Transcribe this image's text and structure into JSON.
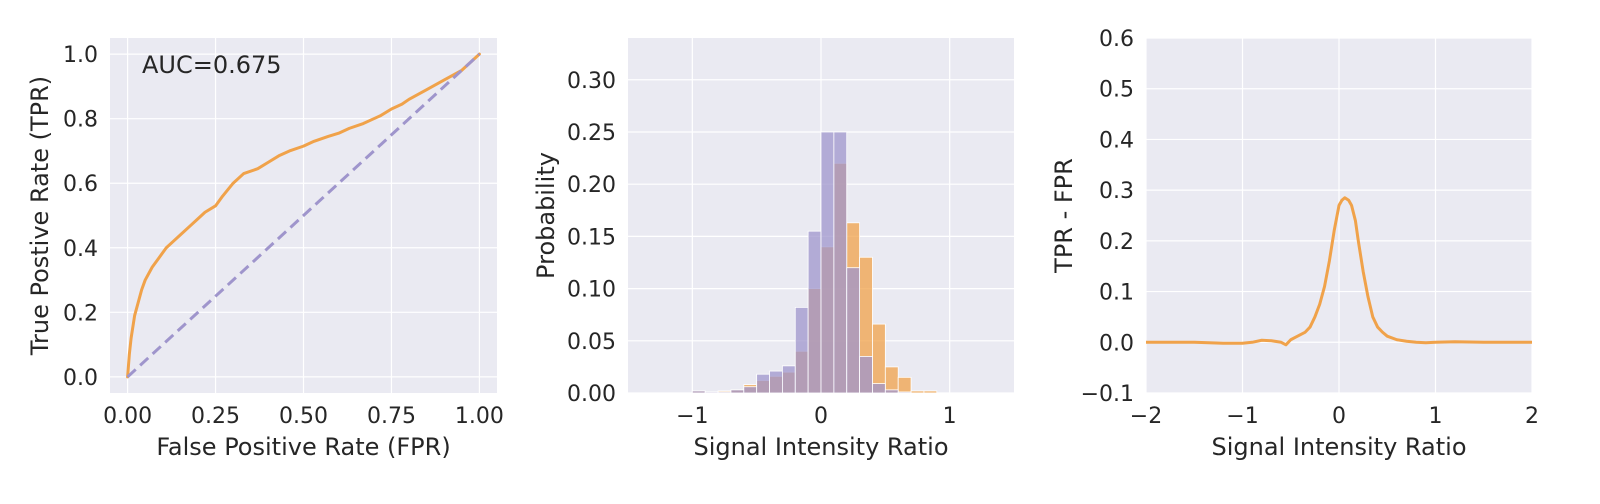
{
  "colors": {
    "panel_bg": "#EAEAF2",
    "grid": "#FFFFFF",
    "orange": "#F0A24A",
    "purple": "#9F95CC",
    "text": "#262626"
  },
  "chart_data": [
    {
      "type": "line",
      "xlabel": "False Positive Rate (FPR)",
      "ylabel": "True Postive Rate (TPR)",
      "xlim": [
        -0.05,
        1.05
      ],
      "ylim": [
        -0.05,
        1.05
      ],
      "xticks": [
        0,
        0.25,
        0.5,
        0.75,
        1.0
      ],
      "xtick_labels": [
        "0.00",
        "0.25",
        "0.50",
        "0.75",
        "1.00"
      ],
      "yticks": [
        0,
        0.2,
        0.4,
        0.6,
        0.8,
        1.0
      ],
      "ytick_labels": [
        "0.0",
        "0.2",
        "0.4",
        "0.6",
        "0.8",
        "1.0"
      ],
      "grid": true,
      "annotation": "AUC=0.675",
      "series": [
        {
          "color": "#F0A24A",
          "style": "solid",
          "x": [
            0,
            0.005,
            0.01,
            0.02,
            0.03,
            0.04,
            0.05,
            0.07,
            0.09,
            0.11,
            0.13,
            0.15,
            0.18,
            0.2,
            0.22,
            0.25,
            0.27,
            0.3,
            0.33,
            0.37,
            0.4,
            0.43,
            0.46,
            0.5,
            0.53,
            0.57,
            0.6,
            0.63,
            0.67,
            0.7,
            0.72,
            0.75,
            0.78,
            0.8,
            0.85,
            0.9,
            0.95,
            1.0
          ],
          "y": [
            0,
            0.07,
            0.12,
            0.19,
            0.23,
            0.27,
            0.3,
            0.34,
            0.37,
            0.4,
            0.42,
            0.44,
            0.47,
            0.49,
            0.51,
            0.53,
            0.56,
            0.6,
            0.63,
            0.645,
            0.665,
            0.685,
            0.7,
            0.715,
            0.73,
            0.745,
            0.755,
            0.77,
            0.785,
            0.8,
            0.81,
            0.83,
            0.845,
            0.86,
            0.89,
            0.92,
            0.95,
            1.0
          ]
        },
        {
          "color": "#9F95CC",
          "style": "dashed",
          "x": [
            0,
            1
          ],
          "y": [
            0,
            1
          ]
        }
      ]
    },
    {
      "type": "bar",
      "subtype": "overlaid-histogram",
      "xlabel": "Signal Intensity Ratio",
      "ylabel": "Probability",
      "xlim": [
        -1.5,
        1.5
      ],
      "ylim": [
        0,
        0.34
      ],
      "xticks": [
        -1,
        0,
        1
      ],
      "xtick_labels": [
        "−1",
        "0",
        "1"
      ],
      "yticks": [
        0,
        0.05,
        0.1,
        0.15,
        0.2,
        0.25,
        0.3
      ],
      "ytick_labels": [
        "0.00",
        "0.05",
        "0.10",
        "0.15",
        "0.20",
        "0.25",
        "0.30"
      ],
      "grid": true,
      "bin_edges": [
        -1.0,
        -0.9,
        -0.8,
        -0.7,
        -0.6,
        -0.5,
        -0.4,
        -0.3,
        -0.2,
        -0.1,
        0.0,
        0.1,
        0.2,
        0.3,
        0.4,
        0.5,
        0.6,
        0.7,
        0.8,
        0.9
      ],
      "series": [
        {
          "color": "#F0A24A",
          "values": [
            0.002,
            0.001,
            0.002,
            0.003,
            0.008,
            0.012,
            0.016,
            0.02,
            0.04,
            0.1,
            0.14,
            0.22,
            0.163,
            0.13,
            0.066,
            0.025,
            0.015,
            0.002,
            0.002
          ]
        },
        {
          "color": "#9F95CC",
          "values": [
            0.002,
            0.001,
            0.001,
            0.003,
            0.006,
            0.018,
            0.021,
            0.026,
            0.082,
            0.155,
            0.25,
            0.25,
            0.12,
            0.035,
            0.009,
            0.003,
            0.001,
            0.0,
            0.0
          ]
        }
      ]
    },
    {
      "type": "line",
      "xlabel": "Signal Intensity Ratio",
      "ylabel": "TPR - FPR",
      "xlim": [
        -2,
        2
      ],
      "ylim": [
        -0.1,
        0.6
      ],
      "xticks": [
        -2,
        -1,
        0,
        1,
        2
      ],
      "xtick_labels": [
        "−2",
        "−1",
        "0",
        "1",
        "2"
      ],
      "yticks": [
        -0.1,
        0,
        0.1,
        0.2,
        0.3,
        0.4,
        0.5,
        0.6
      ],
      "ytick_labels": [
        "−0.1",
        "0.0",
        "0.1",
        "0.2",
        "0.3",
        "0.4",
        "0.5",
        "0.6"
      ],
      "grid": true,
      "series": [
        {
          "color": "#F0A24A",
          "style": "solid",
          "x": [
            -2.0,
            -1.5,
            -1.2,
            -1.0,
            -0.9,
            -0.8,
            -0.7,
            -0.6,
            -0.55,
            -0.5,
            -0.45,
            -0.4,
            -0.35,
            -0.3,
            -0.25,
            -0.2,
            -0.15,
            -0.1,
            -0.05,
            0.0,
            0.03,
            0.06,
            0.1,
            0.13,
            0.17,
            0.2,
            0.25,
            0.3,
            0.35,
            0.4,
            0.45,
            0.5,
            0.6,
            0.7,
            0.8,
            0.9,
            1.0,
            1.2,
            1.5,
            2.0
          ],
          "y": [
            0.0,
            0.0,
            -0.002,
            -0.002,
            0.0,
            0.004,
            0.003,
            0.0,
            -0.005,
            0.005,
            0.01,
            0.015,
            0.02,
            0.03,
            0.05,
            0.075,
            0.11,
            0.16,
            0.22,
            0.27,
            0.28,
            0.285,
            0.28,
            0.27,
            0.24,
            0.2,
            0.14,
            0.09,
            0.05,
            0.03,
            0.02,
            0.012,
            0.005,
            0.002,
            0.0,
            -0.001,
            0.0,
            0.001,
            0.0,
            0.0
          ]
        }
      ]
    }
  ]
}
